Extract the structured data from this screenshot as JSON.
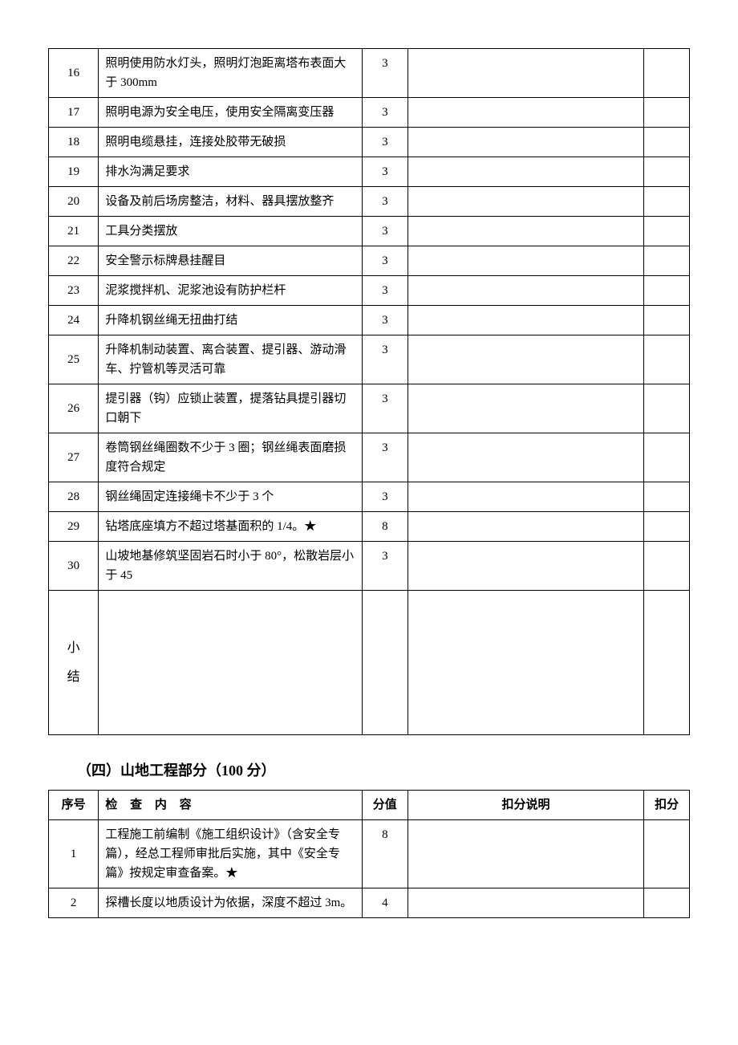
{
  "table1": {
    "rows": [
      {
        "num": "16",
        "content": "照明使用防水灯头，照明灯泡距离塔布表面大于 300mm",
        "score": "3"
      },
      {
        "num": "17",
        "content": "照明电源为安全电压，使用安全隔离变压器",
        "score": "3"
      },
      {
        "num": "18",
        "content": "照明电缆悬挂，连接处胶带无破损",
        "score": "3"
      },
      {
        "num": "19",
        "content": "排水沟满足要求",
        "score": "3"
      },
      {
        "num": "20",
        "content": "设备及前后场房整洁，材料、器具摆放整齐",
        "score": "3"
      },
      {
        "num": "21",
        "content": "工具分类摆放",
        "score": "3"
      },
      {
        "num": "22",
        "content": "安全警示标牌悬挂醒目",
        "score": "3"
      },
      {
        "num": "23",
        "content": "泥浆搅拌机、泥浆池设有防护栏杆",
        "score": "3"
      },
      {
        "num": "24",
        "content": "升降机钢丝绳无扭曲打结",
        "score": "3"
      },
      {
        "num": "25",
        "content": "升降机制动装置、离合装置、提引器、游动滑车、拧管机等灵活可靠",
        "score": "3"
      },
      {
        "num": "26",
        "content": "提引器（钩）应锁止装置，提落钻具提引器切口朝下",
        "score": "3"
      },
      {
        "num": "27",
        "content": "卷筒钢丝绳圈数不少于 3 圈；钢丝绳表面磨损度符合规定",
        "score": "3"
      },
      {
        "num": "28",
        "content": "钢丝绳固定连接绳卡不少于 3 个",
        "score": "3"
      },
      {
        "num": "29",
        "content": "钻塔底座填方不超过塔基面积的 1/4。★",
        "score": "8"
      },
      {
        "num": "30",
        "content": "山坡地基修筑坚固岩石时小于 80°，松散岩层小于 45",
        "score": "3"
      }
    ],
    "summary_label": "小\n结"
  },
  "section2": {
    "heading": "（四）山地工程部分（100 分）",
    "headers": {
      "num": "序号",
      "content": "检 查 内 容",
      "score": "分值",
      "deduct_desc": "扣分说明",
      "deduct": "扣分"
    },
    "rows": [
      {
        "num": "1",
        "content": "工程施工前编制《施工组织设计》（含安全专篇），经总工程师审批后实施，其中《安全专篇》按规定审查备案。★",
        "score": "8"
      },
      {
        "num": "2",
        "content": "探槽长度以地质设计为依据，深度不超过 3m。",
        "score": "4"
      }
    ]
  }
}
